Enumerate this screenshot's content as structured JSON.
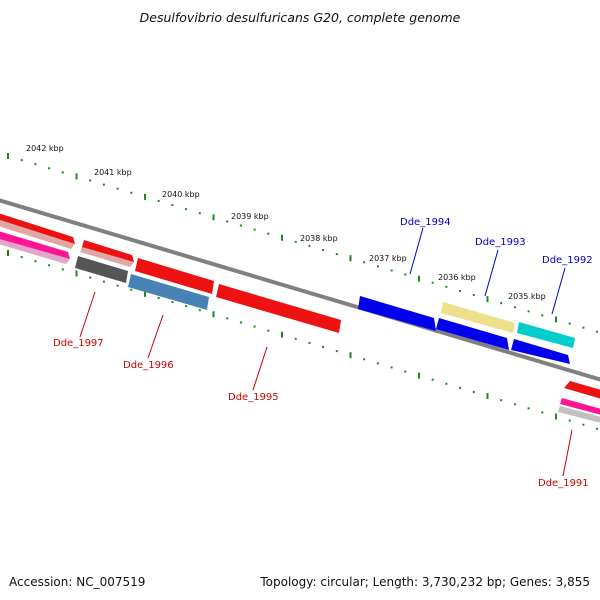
{
  "title": "Desulfovibrio desulfuricans G20, complete genome",
  "footer": {
    "accession": "Accession: NC_007519",
    "summary": "Topology: circular; Length: 3,730,232 bp; Genes: 3,855"
  },
  "colors": {
    "backbone": "#808080",
    "tick": "#1a8a1a",
    "forward_label": "#0000cc",
    "reverse_label": "#cc0000"
  },
  "scale": {
    "unit": "kbp",
    "labels": [
      "2042 kbp",
      "2041 kbp",
      "2040 kbp",
      "2039 kbp",
      "2038 kbp",
      "2037 kbp",
      "2036 kbp",
      "2035 kbp"
    ]
  },
  "genes": [
    {
      "id": "Dde_1997",
      "strand": "reverse",
      "color": "#555555"
    },
    {
      "id": "Dde_1996",
      "strand": "reverse",
      "color": "#4682b4"
    },
    {
      "id": "Dde_1995",
      "strand": "reverse",
      "color": "#ee1111"
    },
    {
      "id": "Dde_1994",
      "strand": "forward",
      "color": "#0000ee"
    },
    {
      "id": "Dde_1993",
      "strand": "forward",
      "color": "#0000ee"
    },
    {
      "id": "Dde_1992",
      "strand": "forward",
      "color": "#00cccc"
    },
    {
      "id": "Dde_1991",
      "strand": "reverse",
      "color": "#ff1493"
    }
  ],
  "unlabeled_features": [
    {
      "name": "offscreen-gene-a",
      "color": "#ee1111"
    },
    {
      "name": "offscreen-gene-b",
      "color": "#ff1493"
    },
    {
      "name": "upstream-gene",
      "color": "#ee1111"
    },
    {
      "name": "upstream-gene-2",
      "color": "#ee1111"
    },
    {
      "name": "khaki-feature",
      "color": "#eee08a"
    },
    {
      "name": "right-edge-gene",
      "color": "#ee1111"
    },
    {
      "name": "right-edge-gene-2",
      "color": "#c0c0c0"
    }
  ]
}
